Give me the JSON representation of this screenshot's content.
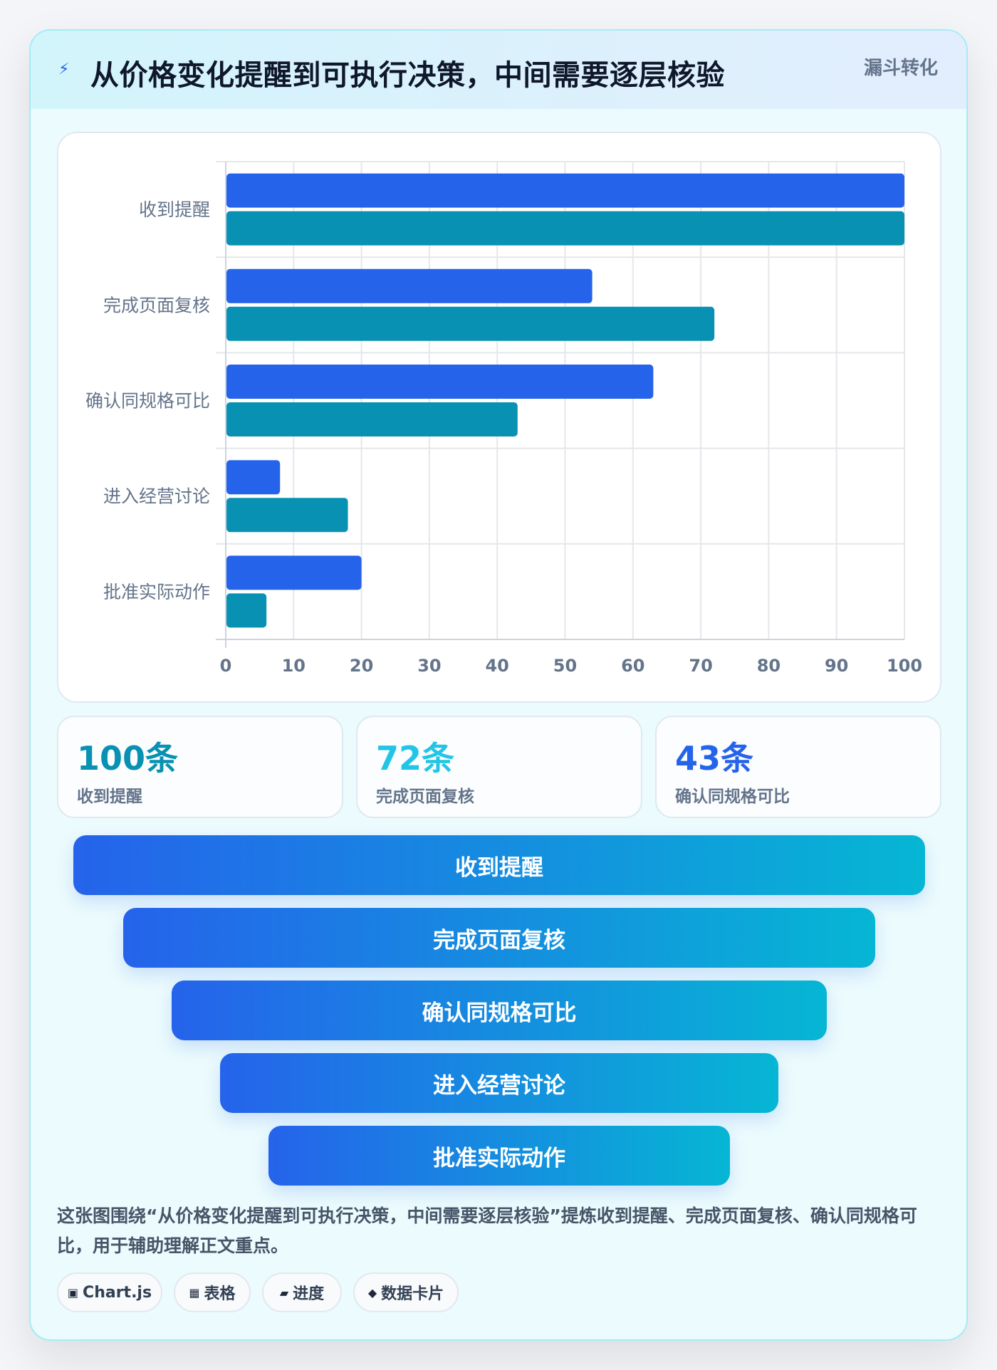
{
  "header": {
    "icon": "lightning-icon",
    "title": "从价格变化提醒到可执行决策，中间需要逐层核验",
    "tag": "漏斗转化"
  },
  "chart_data": {
    "type": "bar",
    "orientation": "horizontal",
    "categories": [
      "收到提醒",
      "完成页面复核",
      "确认同规格可比",
      "进入经营讨论",
      "批准实际动作"
    ],
    "series": [
      {
        "color": "#2563eb",
        "values": [
          100,
          54,
          63,
          8,
          20
        ]
      },
      {
        "color": "#0891b2",
        "values": [
          100,
          72,
          43,
          18,
          6
        ]
      }
    ],
    "xlim": [
      0,
      100
    ],
    "xticks": [
      0,
      10,
      20,
      30,
      40,
      50,
      60,
      70,
      80,
      90,
      100
    ],
    "grid": true,
    "legend": "none"
  },
  "stats": [
    {
      "value": "100条",
      "label": "收到提醒",
      "color": "#0891b2"
    },
    {
      "value": "72条",
      "label": "完成页面复核",
      "color": "#22c5e6"
    },
    {
      "value": "43条",
      "label": "确认同规格可比",
      "color": "#2563eb"
    }
  ],
  "funnel": [
    "收到提醒",
    "完成页面复核",
    "确认同规格可比",
    "进入经营讨论",
    "批准实际动作"
  ],
  "description": "这张图围绕“从价格变化提醒到可执行决策，中间需要逐层核验”提炼收到提醒、完成页面复核、确认同规格可比，用于辅助理解正文重点。",
  "chips": [
    {
      "icon": "▣",
      "label": "Chart.js"
    },
    {
      "icon": "▦",
      "label": "表格"
    },
    {
      "icon": "▰",
      "label": "进度"
    },
    {
      "icon": "◆",
      "label": "数据卡片"
    }
  ]
}
